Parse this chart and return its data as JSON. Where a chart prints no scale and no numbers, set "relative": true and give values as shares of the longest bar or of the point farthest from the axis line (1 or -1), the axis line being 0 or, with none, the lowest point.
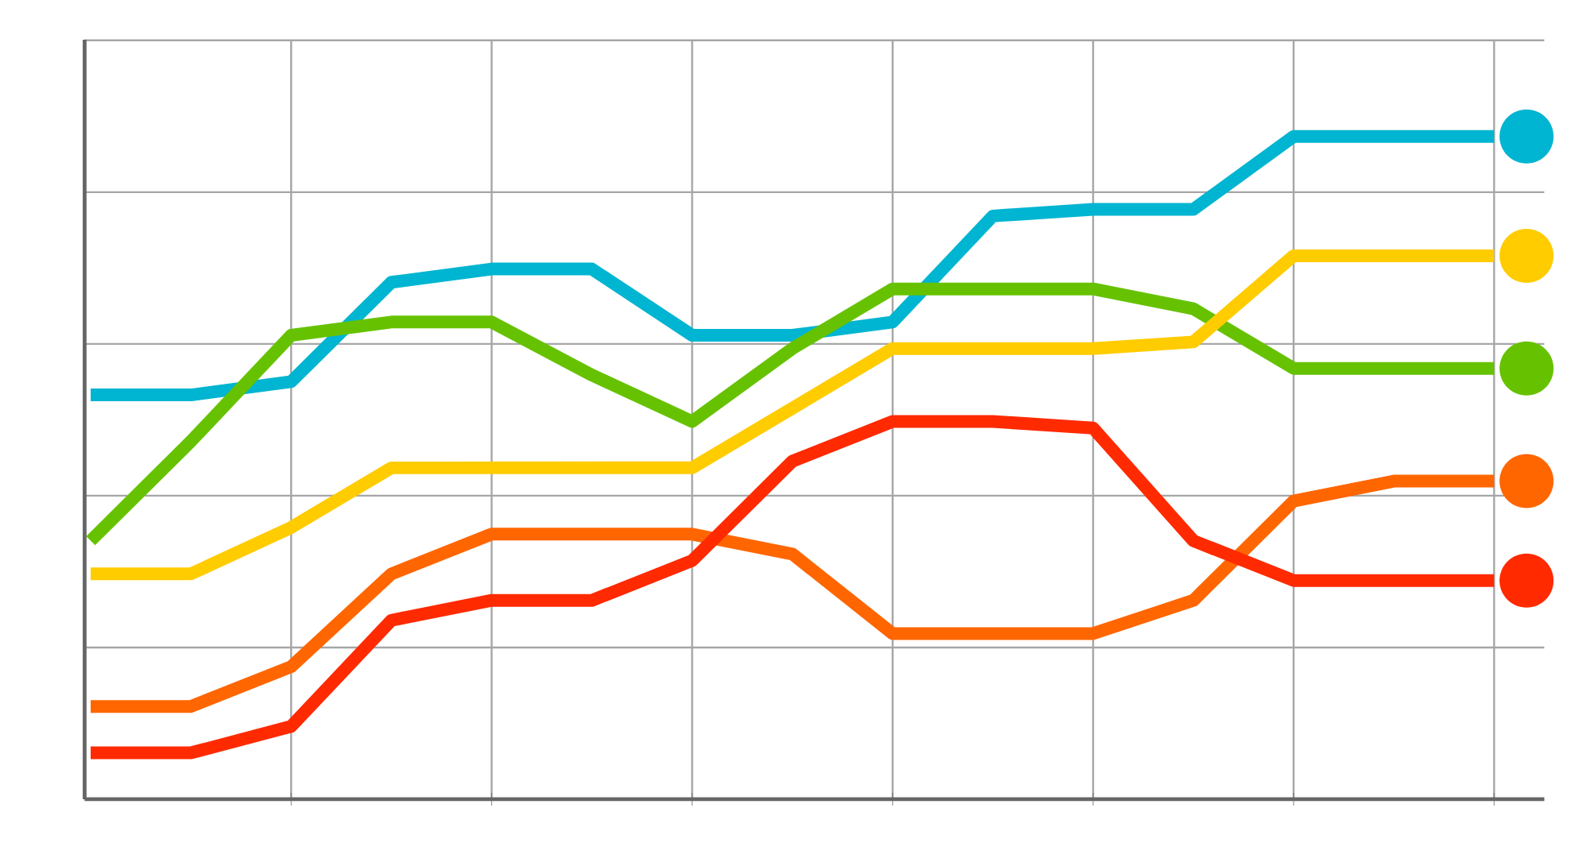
{
  "chart_data": {
    "type": "line",
    "relative": true,
    "grid": true,
    "line_style": "solid",
    "categories": [
      null,
      null,
      null,
      null,
      null,
      null,
      null,
      null,
      null,
      null,
      null,
      null,
      null,
      null,
      null
    ],
    "series": [
      {
        "color": "#00b5d1",
        "values": [
          0.61,
          0.61,
          0.63,
          0.78,
          0.8,
          0.8,
          0.7,
          0.7,
          0.72,
          0.88,
          0.89,
          0.89,
          1.0,
          1.0,
          1.0
        ]
      },
      {
        "color": "#66c200",
        "values": [
          0.39,
          0.54,
          0.7,
          0.72,
          0.72,
          0.64,
          0.57,
          0.68,
          0.77,
          0.77,
          0.77,
          0.74,
          0.65,
          0.65,
          0.65
        ]
      },
      {
        "color": "#ffcc00",
        "values": [
          0.34,
          0.34,
          0.41,
          0.5,
          0.5,
          0.5,
          0.5,
          0.59,
          0.68,
          0.68,
          0.68,
          0.69,
          0.82,
          0.82,
          0.82
        ]
      },
      {
        "color": "#ff6600",
        "values": [
          0.14,
          0.14,
          0.2,
          0.34,
          0.4,
          0.4,
          0.4,
          0.37,
          0.25,
          0.25,
          0.25,
          0.3,
          0.45,
          0.48,
          0.48
        ]
      },
      {
        "color": "#ff2a00",
        "values": [
          0.07,
          0.07,
          0.11,
          0.27,
          0.3,
          0.3,
          0.36,
          0.51,
          0.57,
          0.57,
          0.56,
          0.39,
          0.33,
          0.33,
          0.33
        ]
      }
    ]
  }
}
